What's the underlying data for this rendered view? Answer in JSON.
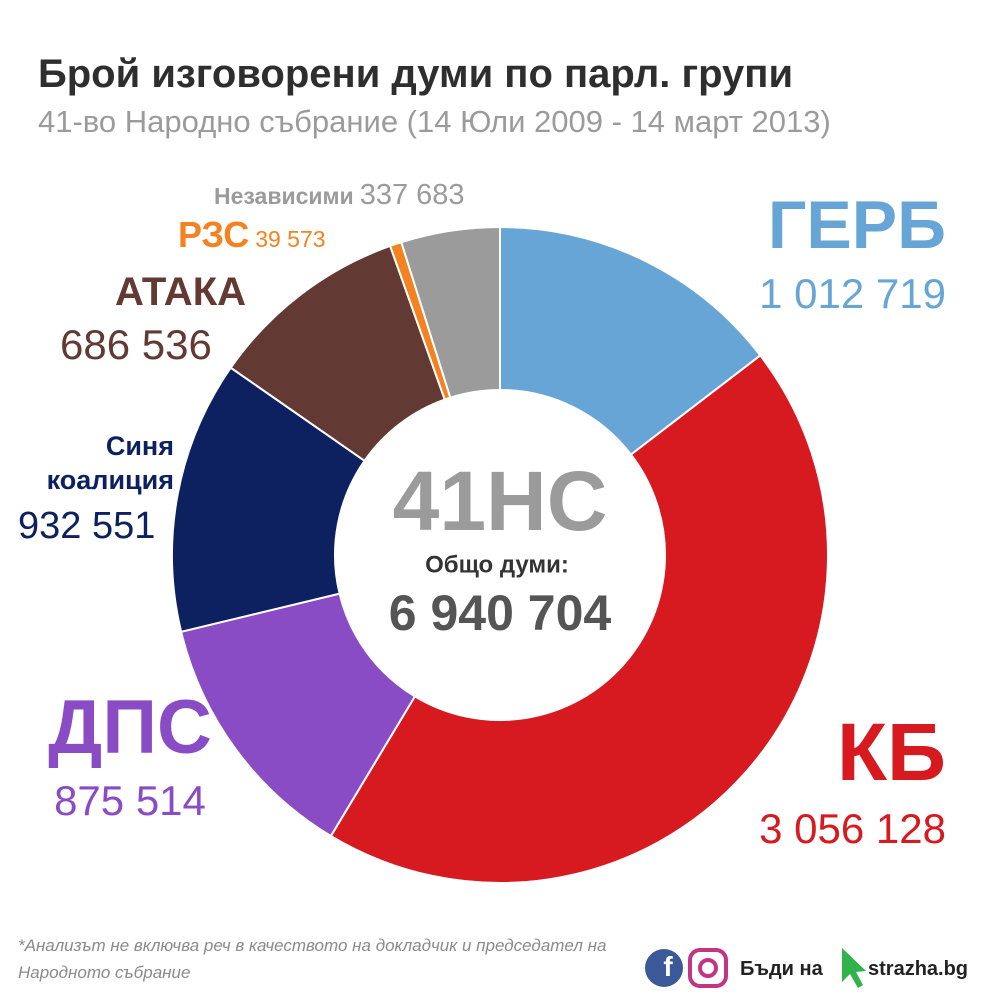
{
  "chart_data": {
    "type": "donut",
    "title": "Брой изговорени думи по парл. групи",
    "subtitle": "41-во Народно събрание (14 Юли 2009 - 14 март 2013)",
    "categories": [
      "ГЕРБ",
      "КБ",
      "ДПС",
      "Синя коалиция",
      "АТАКА",
      "РЗС",
      "Независими"
    ],
    "values": [
      1012719,
      3056128,
      875514,
      932551,
      686536,
      39573,
      337683
    ],
    "value_labels": [
      "1 012 719",
      "3 056 128",
      "875 514",
      "932 551",
      "686 536",
      "39 573",
      "337 683"
    ],
    "colors": [
      "#66a5d6",
      "#d71920",
      "#8a4cc4",
      "#0d2161",
      "#633a33",
      "#f58220",
      "#9b9b9b"
    ],
    "center_text": "41НС",
    "total_label": "Общо думи:",
    "total": {
      "value": 6940704,
      "label": "6 940 704"
    }
  },
  "footer": {
    "note": "*Анализът не включва реч в качеството на докладчик и председател на Народното събрание",
    "cta": "Бъди на",
    "site": "strazha.bg"
  }
}
